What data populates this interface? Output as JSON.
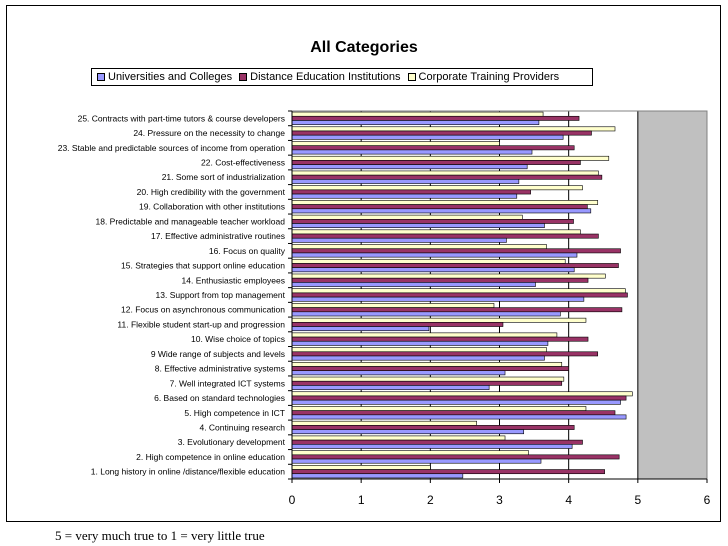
{
  "chart_data": {
    "type": "bar",
    "orientation": "horizontal",
    "title": "All Categories",
    "xlim": [
      0,
      6
    ],
    "xticks": [
      "0",
      "1",
      "2",
      "3",
      "4",
      "5",
      "6"
    ],
    "legend_position": "top",
    "categories": [
      "1. Long history in online /distance/flexible education",
      "2. High competence in online education",
      "3. Evolutionary development",
      "4. Continuing research",
      "5. High competence in ICT",
      "6. Based on standard technologies",
      "7. Well integrated ICT systems",
      "8. Effective administrative systems",
      "9 Wide range of subjects and levels",
      "10. Wise choice of topics",
      "11. Flexible student start-up and progression",
      "12. Focus on asynchronous communication",
      "13. Support from top management",
      "14. Enthusiastic employees",
      "15. Strategies that support online education",
      "16. Focus on quality",
      "17. Effective administrative routines",
      "18. Predictable and manageable teacher workload",
      "19. Collaboration with other institutions",
      "20. High credibility with the government",
      "21. Some sort of industrialization",
      "22. Cost-effectiveness",
      "23. Stable and predictable sources of income from operation",
      "24. Pressure on the necessity to change",
      "25. Contracts with part-time tutors & course developers"
    ],
    "series": [
      {
        "name": "Universities and Colleges",
        "color": "#9999ff",
        "values": [
          2.47,
          3.6,
          4.05,
          3.35,
          4.83,
          4.75,
          2.85,
          3.08,
          3.65,
          3.7,
          1.98,
          3.88,
          4.22,
          3.52,
          4.08,
          4.12,
          3.1,
          3.65,
          4.32,
          3.25,
          3.28,
          3.4,
          3.47,
          3.92,
          3.57
        ]
      },
      {
        "name": "Distance Education Institutions",
        "color": "#993366",
        "values": [
          4.52,
          4.73,
          4.2,
          4.08,
          4.67,
          4.83,
          3.9,
          4.0,
          4.42,
          4.28,
          3.05,
          4.77,
          4.85,
          4.28,
          4.72,
          4.75,
          4.43,
          4.07,
          4.27,
          3.45,
          4.48,
          4.17,
          4.08,
          4.33,
          4.15
        ]
      },
      {
        "name": "Corporate Training Providers",
        "color": "#ffffcc",
        "values": [
          2.0,
          3.42,
          3.08,
          2.67,
          4.25,
          4.92,
          3.93,
          3.9,
          3.68,
          3.83,
          4.25,
          2.92,
          4.82,
          4.53,
          3.95,
          3.68,
          4.17,
          3.33,
          4.42,
          4.2,
          4.43,
          4.58,
          3.0,
          4.67,
          3.63
        ]
      }
    ],
    "note": "5 = very much true to 1 = very little true"
  }
}
